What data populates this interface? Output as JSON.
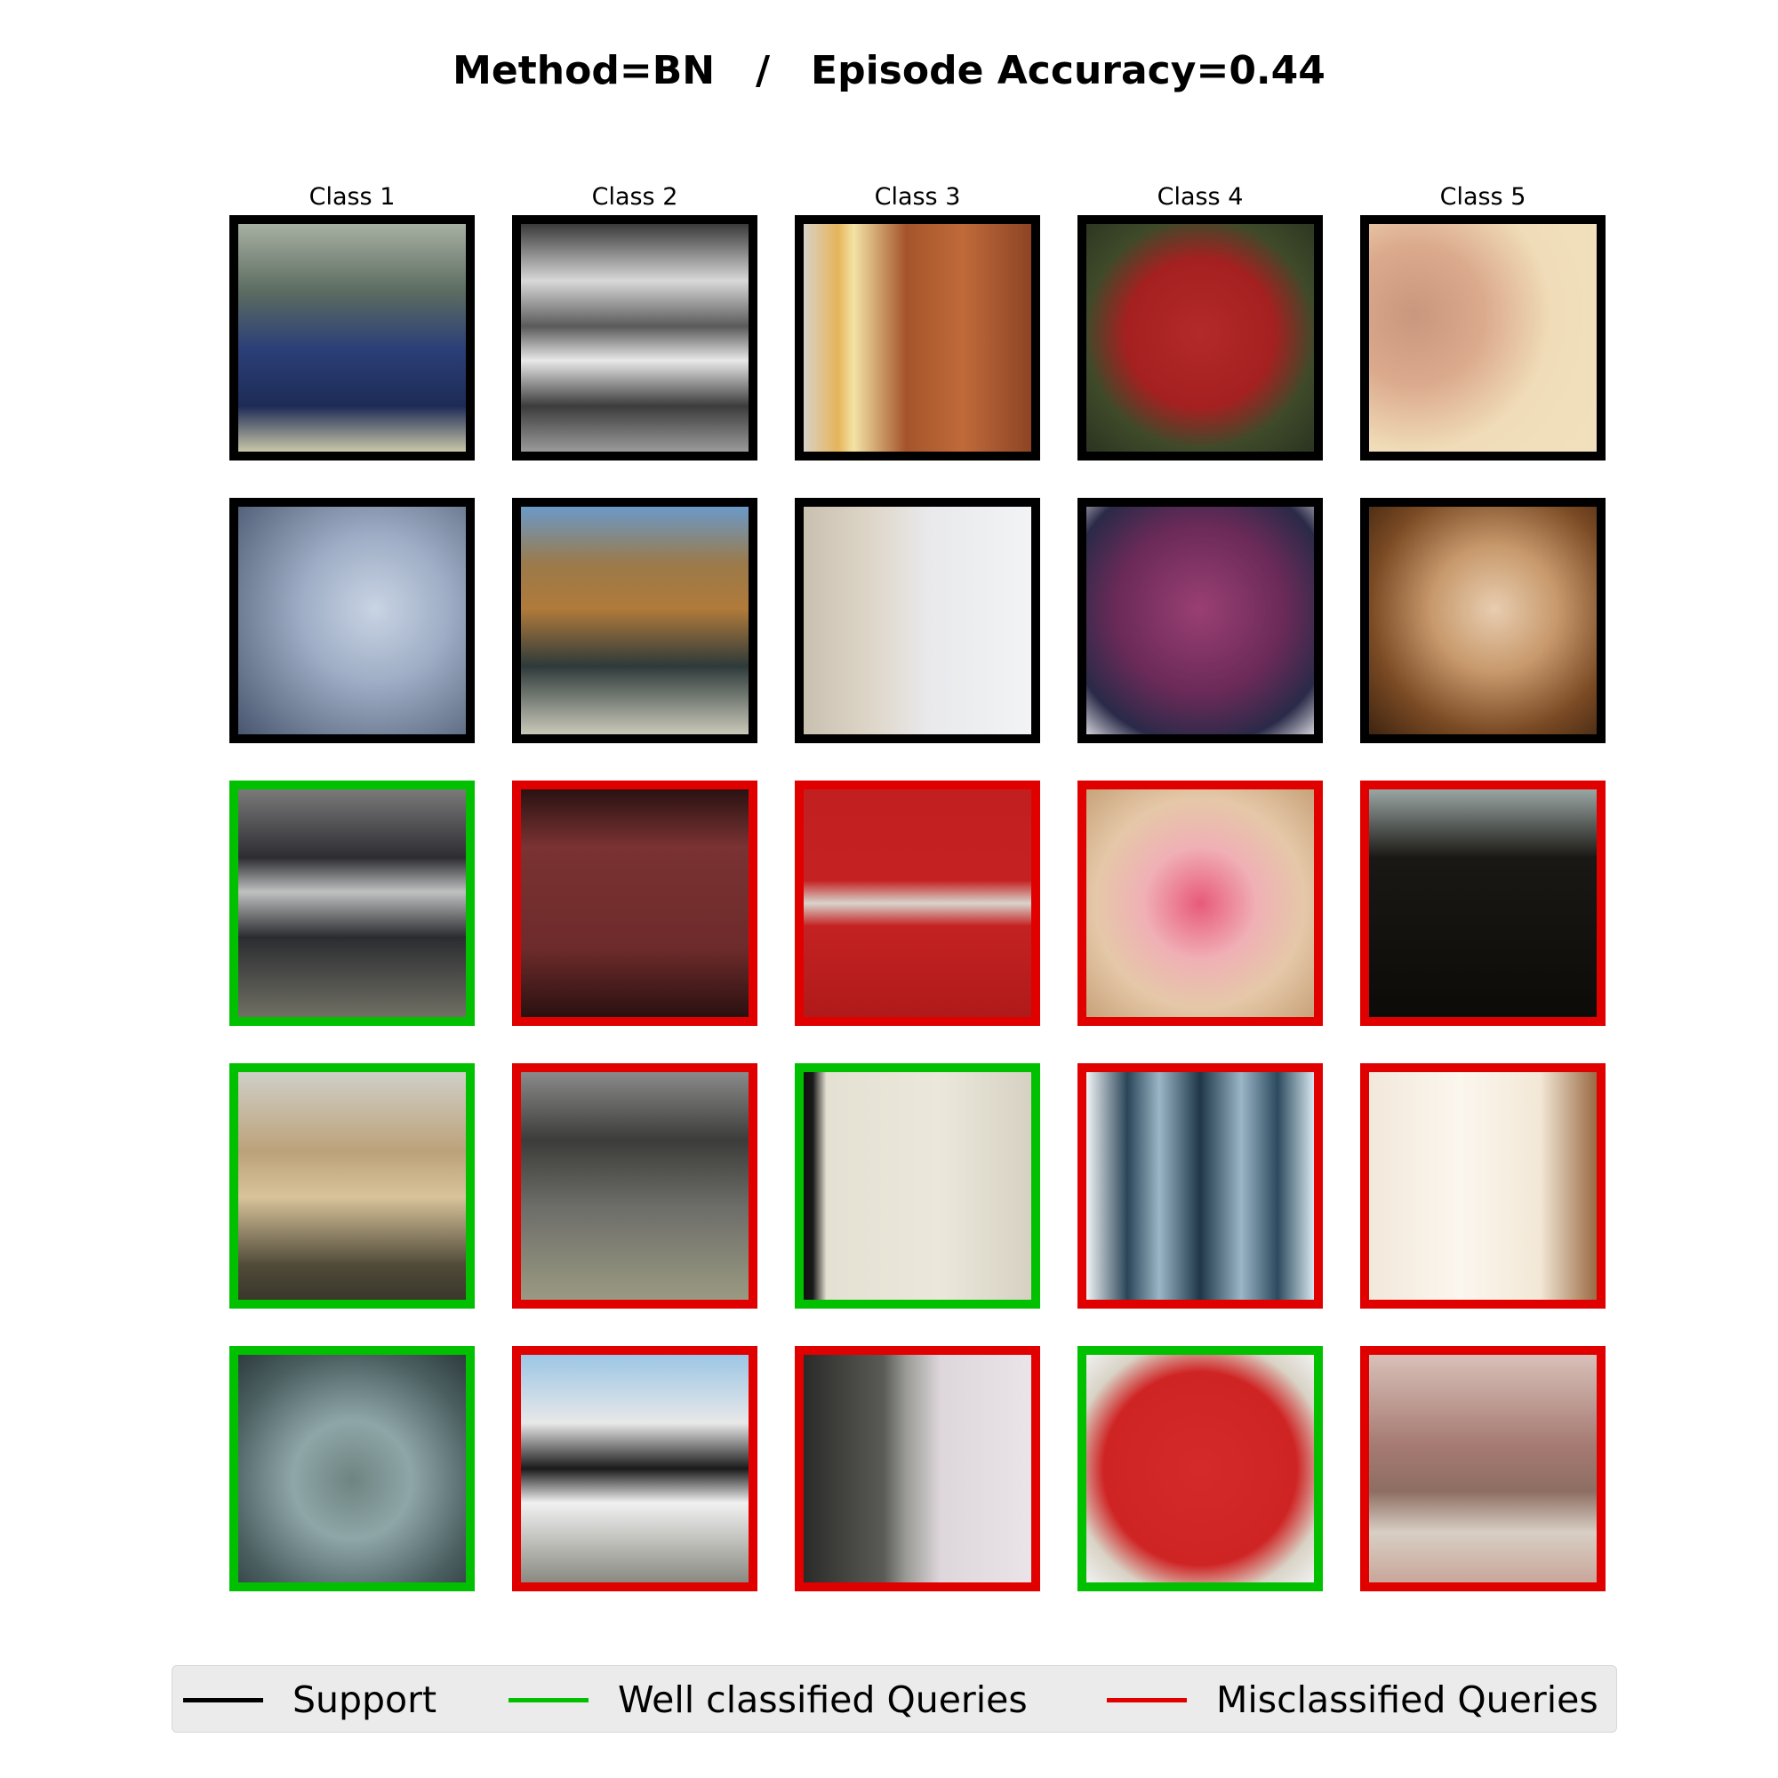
{
  "title": "Method=BN   /   Episode Accuracy=0.44",
  "columns": [
    "Class 1",
    "Class 2",
    "Class 3",
    "Class 4",
    "Class 5"
  ],
  "colors": {
    "support": "#000000",
    "correct": "#00c000",
    "wrong": "#e00000"
  },
  "grid": [
    [
      "support",
      "support",
      "support",
      "support",
      "support"
    ],
    [
      "support",
      "support",
      "support",
      "support",
      "support"
    ],
    [
      "correct",
      "wrong",
      "wrong",
      "wrong",
      "wrong"
    ],
    [
      "correct",
      "wrong",
      "correct",
      "wrong",
      "wrong"
    ],
    [
      "correct",
      "wrong",
      "wrong",
      "correct",
      "wrong"
    ]
  ],
  "images": [
    [
      "car-front",
      "pickup-truck",
      "refrigerator-handle",
      "stop-sign",
      "porcelain-surface"
    ],
    [
      "car-blurred",
      "pickup-with-dog-cage",
      "refrigerator-white",
      "stop-sign-blurred",
      "bathroom-sink"
    ],
    [
      "car-street-scene",
      "red-truck",
      "refrigerator-red",
      "stop-sign-pixelated",
      "dark-surface"
    ],
    [
      "car-beige",
      "truck-fence",
      "refrigerator-cream",
      "blue-stripes",
      "cream-surface"
    ],
    [
      "car-blurred-closeup",
      "cement-truck",
      "refrigerator-door",
      "stop-sign-held",
      "blurred-sink"
    ]
  ],
  "legend": [
    {
      "label": "Support",
      "color_key": "support"
    },
    {
      "label": "Well classified Queries",
      "color_key": "correct"
    },
    {
      "label": "Misclassified Queries",
      "color_key": "wrong"
    }
  ]
}
